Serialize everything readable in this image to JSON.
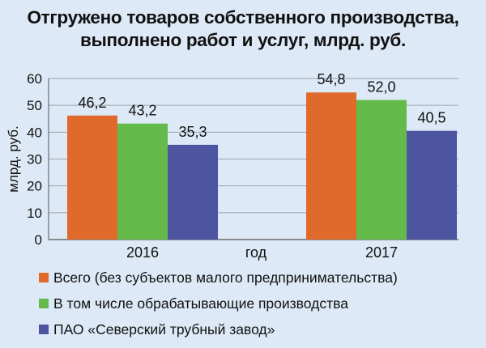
{
  "chart_data": {
    "type": "bar",
    "title_lines": [
      "Отгружено товаров собственного производства,",
      "выполнено работ и услуг, млрд. руб."
    ],
    "xlabel": "год",
    "ylabel": "млрд. руб.",
    "categories": [
      "2016",
      "2017"
    ],
    "ylim": [
      0,
      60
    ],
    "yticks": [
      0,
      10,
      20,
      30,
      40,
      50,
      60
    ],
    "grid": true,
    "legend_position": "bottom",
    "series": [
      {
        "name": "Всего (без субъектов малого предпринимательства)",
        "values": [
          46.2,
          54.8
        ],
        "labels": [
          "46,2",
          "54,8"
        ],
        "color": "#e06a2c"
      },
      {
        "name": "В том числе обрабатывающие производства",
        "values": [
          43.2,
          52.0
        ],
        "labels": [
          "43,2",
          "52,0"
        ],
        "color": "#65bb4a"
      },
      {
        "name": "ПАО «Северский трубный завод»",
        "values": [
          35.3,
          40.5
        ],
        "labels": [
          "35,3",
          "40,5"
        ],
        "color": "#4d55a1"
      }
    ]
  }
}
